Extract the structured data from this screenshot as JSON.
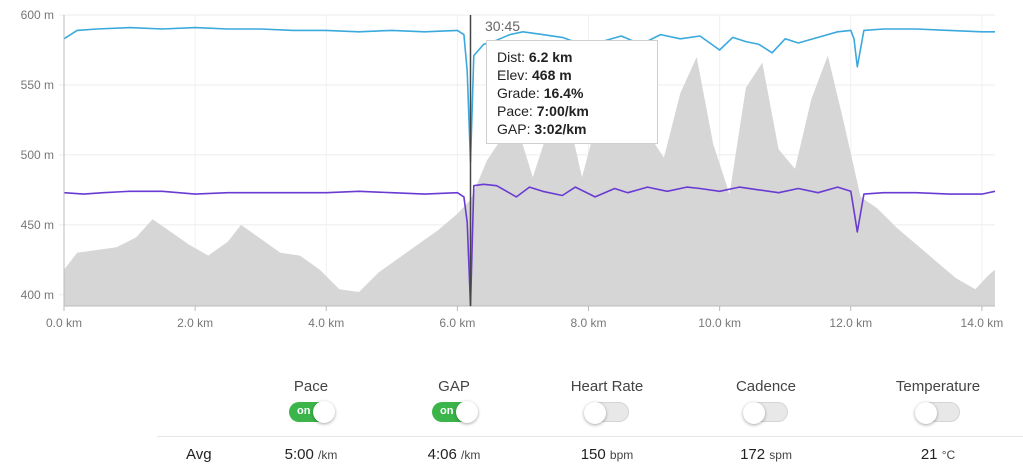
{
  "chart": {
    "y_ticks": [
      "600 m",
      "550 m",
      "500 m",
      "450 m",
      "400 m"
    ],
    "x_ticks": [
      "0.0 km",
      "2.0 km",
      "4.0 km",
      "6.0 km",
      "8.0 km",
      "10.0 km",
      "12.0 km",
      "14.0 km"
    ],
    "colors": {
      "elevation_fill": "#d6d6d6",
      "pace_line": "#3aa9dd",
      "gap_line": "#6a3bd2",
      "cursor": "#444444"
    }
  },
  "cursor": {
    "time": "30:45",
    "tooltip": {
      "dist_label": "Dist:",
      "dist_value": "6.2 km",
      "elev_label": "Elev:",
      "elev_value": "468 m",
      "grade_label": "Grade:",
      "grade_value": "16.4%",
      "pace_label": "Pace:",
      "pace_value": "7:00/km",
      "gap_label": "GAP:",
      "gap_value": "3:02/km"
    }
  },
  "controls": [
    {
      "label": "Pace",
      "state": "on",
      "on_text": "on"
    },
    {
      "label": "GAP",
      "state": "on",
      "on_text": "on"
    },
    {
      "label": "Heart Rate",
      "state": "off",
      "on_text": ""
    },
    {
      "label": "Cadence",
      "state": "off",
      "on_text": ""
    },
    {
      "label": "Temperature",
      "state": "off",
      "on_text": ""
    }
  ],
  "stats": {
    "row_label": "Avg",
    "items": [
      {
        "value": "5:00",
        "unit": "/km"
      },
      {
        "value": "4:06",
        "unit": "/km"
      },
      {
        "value": "150",
        "unit": "bpm"
      },
      {
        "value": "172",
        "unit": "spm"
      },
      {
        "value": "21",
        "unit": "°C"
      }
    ]
  },
  "chart_data": {
    "type": "area",
    "x_unit": "km",
    "xlim": [
      0,
      14.2
    ],
    "ylim": [
      392,
      600
    ],
    "elevation": {
      "x": [
        0,
        0.2,
        0.5,
        0.8,
        1.1,
        1.35,
        1.6,
        1.9,
        2.2,
        2.5,
        2.7,
        3.0,
        3.3,
        3.6,
        3.9,
        4.2,
        4.5,
        4.8,
        5.1,
        5.4,
        5.7,
        6.0,
        6.2,
        6.45,
        6.65,
        6.9,
        7.15,
        7.4,
        7.65,
        7.9,
        8.15,
        8.4,
        8.65,
        8.9,
        9.15,
        9.4,
        9.65,
        9.9,
        10.15,
        10.4,
        10.65,
        10.9,
        11.15,
        11.4,
        11.65,
        11.9,
        12.15,
        12.4,
        12.7,
        13.0,
        13.3,
        13.6,
        13.9,
        14.1,
        14.2
      ],
      "y": [
        418,
        430,
        432,
        434,
        441,
        454,
        446,
        436,
        428,
        438,
        450,
        440,
        430,
        428,
        418,
        404,
        402,
        416,
        426,
        436,
        446,
        458,
        468,
        496,
        510,
        522,
        484,
        520,
        536,
        484,
        528,
        548,
        562,
        516,
        498,
        544,
        570,
        508,
        472,
        548,
        566,
        504,
        490,
        540,
        571,
        522,
        470,
        462,
        448,
        436,
        424,
        412,
        404,
        414,
        418
      ]
    },
    "series": [
      {
        "name": "Pace",
        "x": [
          0,
          0.2,
          0.5,
          1,
          1.5,
          2,
          2.5,
          3,
          3.5,
          4,
          4.5,
          5,
          5.5,
          6.0,
          6.1,
          6.15,
          6.2,
          6.25,
          6.4,
          6.6,
          6.8,
          7.0,
          7.3,
          7.6,
          7.9,
          8.2,
          8.5,
          8.8,
          9.1,
          9.4,
          9.7,
          10.0,
          10.2,
          10.4,
          10.6,
          10.8,
          11.0,
          11.2,
          11.5,
          11.8,
          12.0,
          12.05,
          12.1,
          12.2,
          12.5,
          13,
          13.5,
          14,
          14.2
        ],
        "y": [
          583,
          589,
          590,
          591,
          590,
          591,
          590,
          590,
          589,
          589,
          588,
          589,
          588,
          589,
          586,
          560,
          495,
          571,
          579,
          582,
          586,
          588,
          586,
          584,
          579,
          581,
          585,
          579,
          586,
          583,
          585,
          575,
          584,
          581,
          579,
          573,
          583,
          580,
          584,
          588,
          589,
          583,
          563,
          589,
          590,
          590,
          589,
          588,
          588
        ]
      },
      {
        "name": "GAP",
        "x": [
          0,
          0.3,
          0.6,
          1,
          1.5,
          2,
          2.5,
          3,
          3.5,
          4,
          4.5,
          5,
          5.5,
          6.0,
          6.1,
          6.15,
          6.2,
          6.25,
          6.4,
          6.6,
          6.9,
          7.1,
          7.3,
          7.6,
          7.8,
          8.1,
          8.4,
          8.6,
          8.9,
          9.2,
          9.5,
          9.7,
          10,
          10.3,
          10.6,
          10.9,
          11.2,
          11.5,
          11.8,
          12.0,
          12.05,
          12.1,
          12.2,
          12.5,
          13,
          13.5,
          14,
          14.2
        ],
        "y": [
          473,
          472,
          473,
          474,
          474,
          472,
          473,
          473,
          473,
          473,
          474,
          473,
          472,
          473,
          470,
          452,
          392,
          478,
          479,
          478,
          470,
          477,
          474,
          471,
          477,
          470,
          476,
          473,
          477,
          474,
          477,
          476,
          474,
          477,
          475,
          473,
          476,
          473,
          477,
          474,
          460,
          445,
          472,
          473,
          473,
          472,
          472,
          474
        ]
      }
    ]
  }
}
